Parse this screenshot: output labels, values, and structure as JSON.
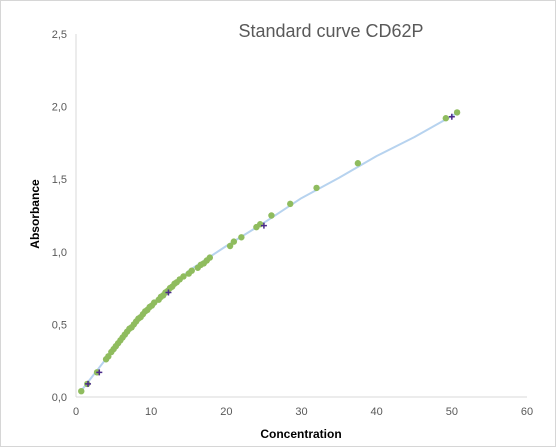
{
  "chart_data": {
    "type": "scatter",
    "title": "Standard curve CD62P",
    "xlabel": "Concentration",
    "ylabel": "Absorbance",
    "xlim": [
      0,
      60
    ],
    "ylim": [
      0,
      2.5
    ],
    "x_ticks": [
      "0",
      "10",
      "20",
      "30",
      "40",
      "50",
      "60"
    ],
    "y_ticks": [
      "0,0",
      "0,5",
      "1,0",
      "1,5",
      "2,0",
      "2,5"
    ],
    "grid": false,
    "legend": "none",
    "colors": {
      "points": "#8fbc5e",
      "curve": "#b7d3ef",
      "standards": "#4b2a8a",
      "axis": "#d9d9d9",
      "text": "#595959"
    },
    "series": [
      {
        "type": "line",
        "x": [
          0.5,
          5,
          10,
          15,
          20,
          25,
          30,
          35,
          40,
          45,
          50.5
        ],
        "y": [
          0.03,
          0.33,
          0.62,
          0.87,
          1.04,
          1.2,
          1.37,
          1.51,
          1.66,
          1.79,
          1.95
        ]
      },
      {
        "type": "scatter",
        "marker": "circle",
        "x": [
          0.7,
          1.5,
          2.8,
          4.0,
          4.3,
          4.7,
          5.0,
          5.3,
          5.6,
          5.9,
          6.2,
          6.5,
          6.8,
          7.1,
          7.4,
          7.7,
          8.0,
          8.3,
          8.6,
          8.9,
          9.2,
          9.5,
          9.8,
          10.1,
          10.4,
          11.0,
          11.3,
          11.6,
          11.9,
          12.2,
          12.5,
          12.8,
          13.1,
          13.4,
          13.8,
          14.3,
          15.0,
          15.4,
          16.2,
          16.6,
          17.0,
          17.4,
          17.8,
          20.5,
          21.0,
          22.0,
          24.0,
          24.5,
          26.0,
          28.5,
          32.0,
          37.5,
          49.2,
          50.7
        ],
        "y": [
          0.04,
          0.09,
          0.17,
          0.26,
          0.28,
          0.31,
          0.33,
          0.35,
          0.37,
          0.39,
          0.41,
          0.43,
          0.45,
          0.47,
          0.48,
          0.5,
          0.52,
          0.54,
          0.55,
          0.57,
          0.59,
          0.6,
          0.62,
          0.63,
          0.65,
          0.67,
          0.69,
          0.7,
          0.72,
          0.73,
          0.75,
          0.76,
          0.78,
          0.79,
          0.81,
          0.83,
          0.85,
          0.87,
          0.89,
          0.91,
          0.92,
          0.94,
          0.96,
          1.04,
          1.07,
          1.1,
          1.17,
          1.19,
          1.25,
          1.33,
          1.44,
          1.61,
          1.92,
          1.96
        ]
      },
      {
        "type": "scatter",
        "marker": "plus",
        "x": [
          1.6,
          3.1,
          12.3,
          25.0,
          50.0
        ],
        "y": [
          0.09,
          0.17,
          0.72,
          1.18,
          1.93
        ]
      }
    ]
  }
}
